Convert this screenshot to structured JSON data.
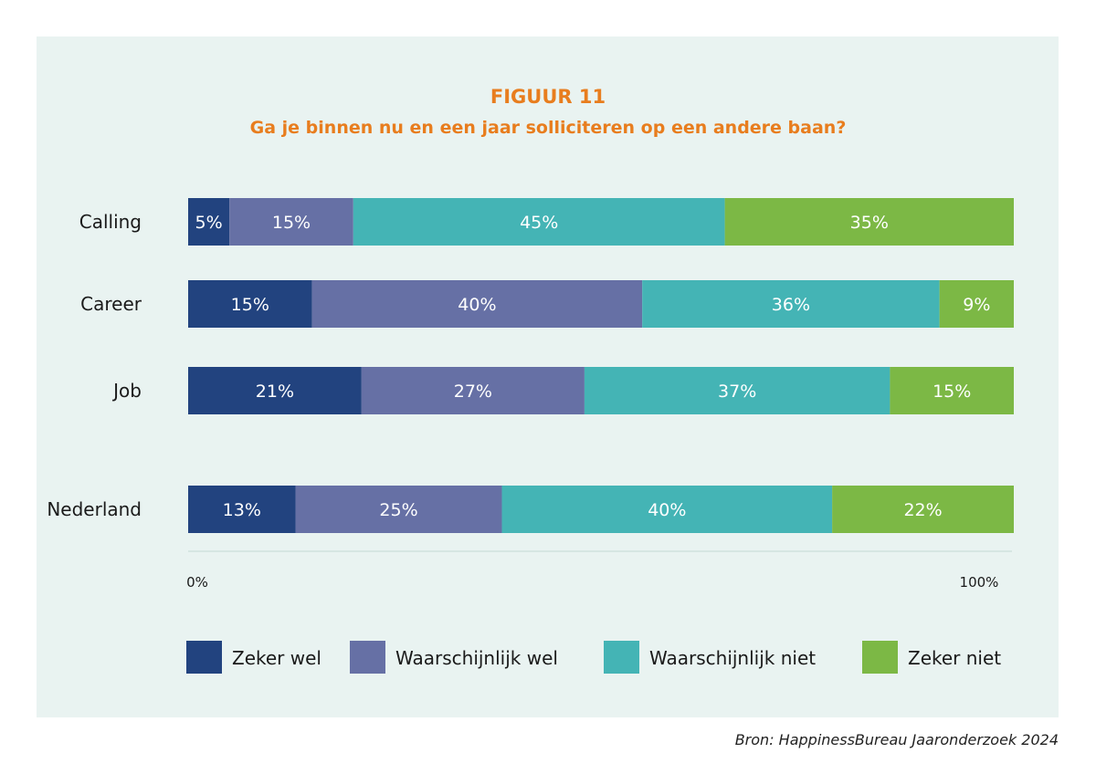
{
  "figure_label": "FIGUUR 11",
  "source": "Bron: HappinessBureau Jaaronderzoek 2024",
  "colors": {
    "title": "#e87d1e",
    "background_panel": "#e9f3f1",
    "axis_line": "#cfe2de"
  },
  "chart_data": {
    "type": "bar",
    "orientation": "horizontal",
    "stacked": true,
    "title": "Ga je binnen nu en een jaar solliciteren op een andere baan?",
    "categories": [
      "Calling",
      "Career",
      "Job",
      "Nederland"
    ],
    "series": [
      {
        "name": "Zeker wel",
        "color": "#22437f",
        "values": [
          5,
          15,
          21,
          13
        ]
      },
      {
        "name": "Waarschijnlijk wel",
        "color": "#6670a5",
        "values": [
          15,
          40,
          27,
          25
        ]
      },
      {
        "name": "Waarschijnlijk niet",
        "color": "#44b4b5",
        "values": [
          45,
          36,
          37,
          40
        ]
      },
      {
        "name": "Zeker niet",
        "color": "#7cb845",
        "values": [
          35,
          9,
          15,
          22
        ]
      }
    ],
    "xlim": [
      0,
      100
    ],
    "x_ticks": [
      "0%",
      "100%"
    ],
    "value_suffix": "%",
    "legend_position": "bottom",
    "grid": false
  }
}
